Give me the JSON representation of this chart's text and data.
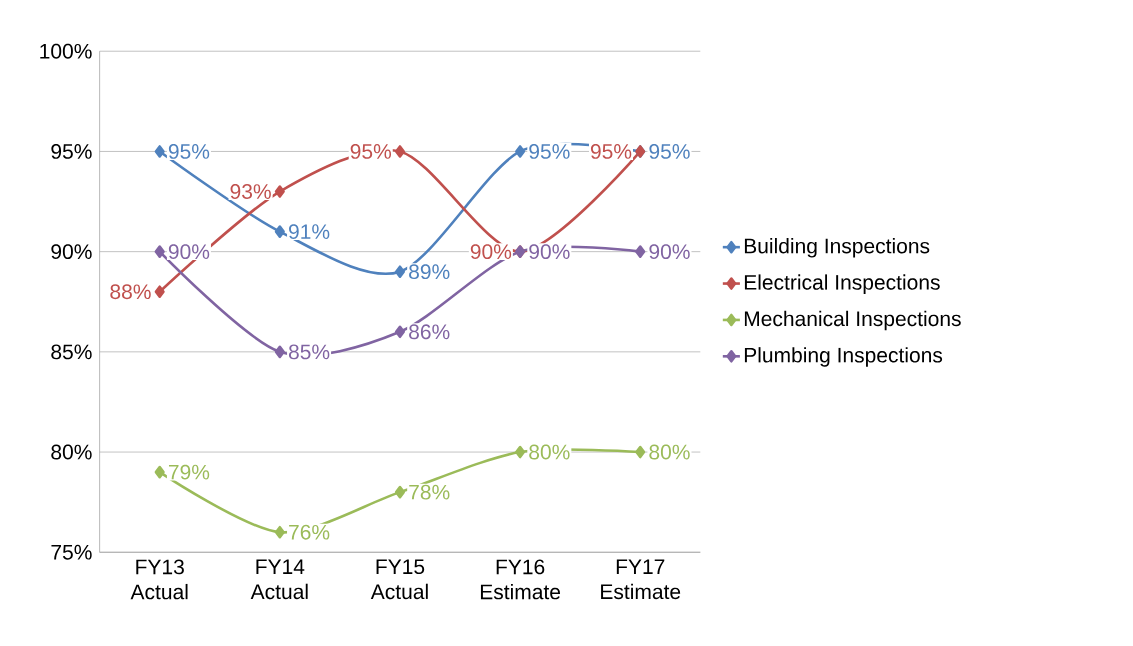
{
  "chart_data": {
    "type": "line",
    "categories": [
      "FY13 Actual",
      "FY14 Actual",
      "FY15 Actual",
      "FY16 Estimate",
      "FY17 Estimate"
    ],
    "series": [
      {
        "name": "Building Inspections",
        "color": "#4f81bd",
        "values": [
          95,
          91,
          89,
          95,
          95
        ],
        "value_labels": [
          "95%",
          "91%",
          "89%",
          "95%",
          "95%"
        ]
      },
      {
        "name": "Electrical Inspections",
        "color": "#c0504d",
        "values": [
          88,
          93,
          95,
          90,
          95
        ],
        "value_labels": [
          "88%",
          "93%",
          "95%",
          "90%",
          "95%"
        ]
      },
      {
        "name": "Mechanical Inspections",
        "color": "#9bbb59",
        "values": [
          79,
          76,
          78,
          80,
          80
        ],
        "value_labels": [
          "79%",
          "76%",
          "78%",
          "80%",
          "80%"
        ]
      },
      {
        "name": "Plumbing Inspections",
        "color": "#8064a2",
        "values": [
          90,
          85,
          86,
          90,
          90
        ],
        "value_labels": [
          "90%",
          "85%",
          "86%",
          "90%",
          "90%"
        ]
      }
    ],
    "ylim": [
      75,
      100
    ],
    "yticks": [
      {
        "value": 75,
        "label": "75%"
      },
      {
        "value": 80,
        "label": "80%"
      },
      {
        "value": 85,
        "label": "85%"
      },
      {
        "value": 90,
        "label": "90%"
      },
      {
        "value": 95,
        "label": "95%"
      },
      {
        "value": 100,
        "label": "100%"
      }
    ],
    "grid": "y",
    "legend": "right",
    "marker": "diamond",
    "line_style": "solid"
  }
}
